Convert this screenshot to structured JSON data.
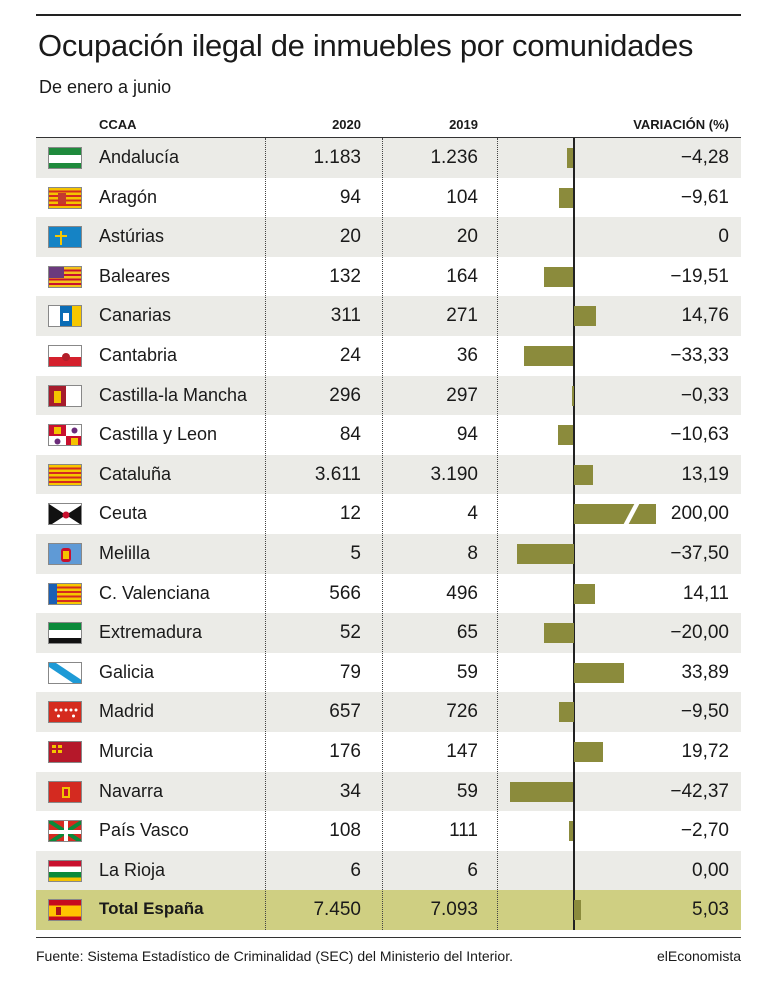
{
  "title": "Ocupación ilegal de inmuebles por comunidades",
  "subtitle": "De enero a junio",
  "source": "Fuente: Sistema Estadístico de Criminalidad (SEC) del Ministerio del Interior.",
  "brand": "elEconomista",
  "colors": {
    "bar": "#8b8b3c",
    "shade": "#ebebe7",
    "total": "#cfcf82"
  },
  "chart_data": {
    "type": "table",
    "title": "Ocupación ilegal de inmuebles por comunidades",
    "columns": [
      "CCAA",
      "2020",
      "2019",
      "VARIACIÓN (%)"
    ],
    "bar_scale_note": "Ceuta bar is truncated (broken bar) at the chart edge",
    "rows": [
      {
        "ccaa": "Andalucía",
        "v2020": "1.183",
        "v2019": "1.236",
        "variation_label": "−4,28",
        "variation": -4.28,
        "flag": "flag-andalucia"
      },
      {
        "ccaa": "Aragón",
        "v2020": "94",
        "v2019": "104",
        "variation_label": "−9,61",
        "variation": -9.61,
        "flag": "flag-aragon"
      },
      {
        "ccaa": "Astúrias",
        "v2020": "20",
        "v2019": "20",
        "variation_label": "0",
        "variation": 0,
        "flag": "flag-asturias"
      },
      {
        "ccaa": "Baleares",
        "v2020": "132",
        "v2019": "164",
        "variation_label": "−19,51",
        "variation": -19.51,
        "flag": "flag-baleares"
      },
      {
        "ccaa": "Canarias",
        "v2020": "311",
        "v2019": "271",
        "variation_label": "14,76",
        "variation": 14.76,
        "flag": "flag-canarias"
      },
      {
        "ccaa": "Cantabria",
        "v2020": "24",
        "v2019": "36",
        "variation_label": "−33,33",
        "variation": -33.33,
        "flag": "flag-cantabria"
      },
      {
        "ccaa": "Castilla-la Mancha",
        "v2020": "296",
        "v2019": "297",
        "variation_label": "−0,33",
        "variation": -0.33,
        "flag": "flag-castilla-la-mancha"
      },
      {
        "ccaa": "Castilla y Leon",
        "v2020": "84",
        "v2019": "94",
        "variation_label": "−10,63",
        "variation": -10.63,
        "flag": "flag-castilla-y-leon"
      },
      {
        "ccaa": "Cataluña",
        "v2020": "3.611",
        "v2019": "3.190",
        "variation_label": "13,19",
        "variation": 13.19,
        "flag": "flag-cataluna"
      },
      {
        "ccaa": "Ceuta",
        "v2020": "12",
        "v2019": "4",
        "variation_label": "200,00",
        "variation": 200.0,
        "flag": "flag-ceuta",
        "truncated": true
      },
      {
        "ccaa": "Melilla",
        "v2020": "5",
        "v2019": "8",
        "variation_label": "−37,50",
        "variation": -37.5,
        "flag": "flag-melilla"
      },
      {
        "ccaa": "C. Valenciana",
        "v2020": "566",
        "v2019": "496",
        "variation_label": "14,11",
        "variation": 14.11,
        "flag": "flag-valenciana"
      },
      {
        "ccaa": "Extremadura",
        "v2020": "52",
        "v2019": "65",
        "variation_label": "−20,00",
        "variation": -20.0,
        "flag": "flag-extremadura"
      },
      {
        "ccaa": "Galicia",
        "v2020": "79",
        "v2019": "59",
        "variation_label": "33,89",
        "variation": 33.89,
        "flag": "flag-galicia"
      },
      {
        "ccaa": "Madrid",
        "v2020": "657",
        "v2019": "726",
        "variation_label": "−9,50",
        "variation": -9.5,
        "flag": "flag-madrid"
      },
      {
        "ccaa": "Murcia",
        "v2020": "176",
        "v2019": "147",
        "variation_label": "19,72",
        "variation": 19.72,
        "flag": "flag-murcia"
      },
      {
        "ccaa": "Navarra",
        "v2020": "34",
        "v2019": "59",
        "variation_label": "−42,37",
        "variation": -42.37,
        "flag": "flag-navarra"
      },
      {
        "ccaa": "País Vasco",
        "v2020": "108",
        "v2019": "111",
        "variation_label": "−2,70",
        "variation": -2.7,
        "flag": "flag-pais-vasco"
      },
      {
        "ccaa": "La Rioja",
        "v2020": "6",
        "v2019": "6",
        "variation_label": "0,00",
        "variation": 0.0,
        "flag": "flag-la-rioja"
      },
      {
        "ccaa": "Total España",
        "v2020": "7.450",
        "v2019": "7.093",
        "variation_label": "5,03",
        "variation": 5.03,
        "flag": "flag-espana",
        "total": true
      }
    ]
  }
}
